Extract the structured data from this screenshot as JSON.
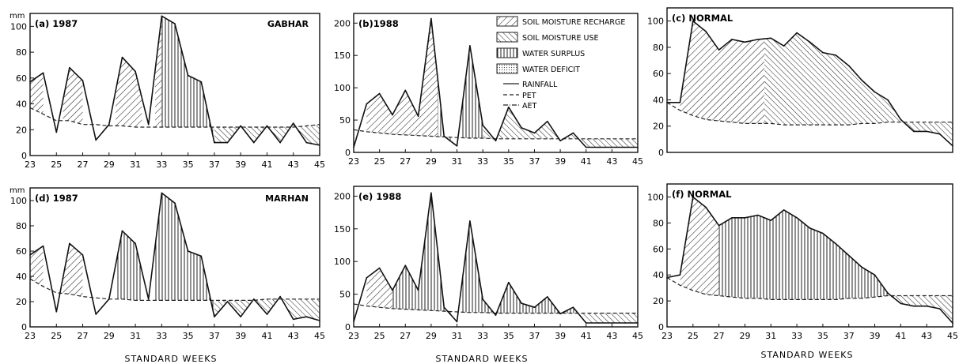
{
  "figure": {
    "xlabel": "STANDARD WEEKS",
    "colors": {
      "ink": "#1a1a1a",
      "paper": "#ffffff"
    },
    "legend": {
      "placement": "inside panel (b), top-right",
      "items": [
        {
          "label": "SOIL MOISTURE RECHARGE",
          "pattern": "diag-right"
        },
        {
          "label": "SOIL MOISTURE USE",
          "pattern": "diag-left"
        },
        {
          "label": "WATER SURPLUS",
          "pattern": "vertical"
        },
        {
          "label": "WATER DEFICIT",
          "pattern": "dots"
        },
        {
          "label": "RAINFALL",
          "line": "solid"
        },
        {
          "label": "PET",
          "line": "dashed"
        },
        {
          "label": "AET",
          "line": "dashdot"
        }
      ]
    }
  },
  "chart_data": [
    {
      "id": "a",
      "type": "area",
      "panel_label": "(a) 1987",
      "site_label": "GABHAR",
      "ylabel": "mm",
      "ylim": [
        0,
        110
      ],
      "yticks": [
        0,
        20,
        40,
        60,
        80,
        100
      ],
      "xlim": [
        23,
        45
      ],
      "xticks": [
        23,
        25,
        27,
        29,
        31,
        33,
        35,
        37,
        39,
        41,
        43,
        45
      ],
      "series": [
        {
          "name": "RAINFALL",
          "x": [
            23,
            24,
            25,
            26,
            27,
            28,
            29,
            30,
            31,
            32,
            33,
            34,
            35,
            36,
            37,
            38,
            39,
            40,
            41,
            42,
            43,
            44,
            45
          ],
          "values": [
            57,
            64,
            18,
            68,
            58,
            12,
            24,
            76,
            65,
            24,
            108,
            102,
            62,
            57,
            10,
            10,
            23,
            10,
            23,
            10,
            25,
            10,
            8
          ]
        },
        {
          "name": "PET",
          "x": [
            23,
            24,
            25,
            26,
            27,
            28,
            29,
            30,
            31,
            32,
            33,
            34,
            35,
            36,
            37,
            38,
            39,
            40,
            41,
            42,
            43,
            44,
            45
          ],
          "values": [
            37,
            32,
            27,
            27,
            24,
            24,
            23,
            23,
            22,
            22,
            22,
            22,
            22,
            22,
            22,
            22,
            22,
            22,
            22,
            22,
            22,
            23,
            24
          ]
        }
      ],
      "regions": [
        {
          "pattern": "diag-right",
          "x_range": [
            23,
            24
          ]
        },
        {
          "pattern": "diag-right",
          "x_range": [
            25.5,
            27
          ]
        },
        {
          "pattern": "diag-right",
          "x_range": [
            29.5,
            31.5
          ]
        },
        {
          "pattern": "diag-right",
          "x_range": [
            32.5,
            33
          ]
        },
        {
          "pattern": "vertical",
          "x_range": [
            33,
            36.9
          ]
        },
        {
          "pattern": "diag-left",
          "x_range": [
            37,
            45
          ]
        }
      ]
    },
    {
      "id": "b",
      "type": "area",
      "panel_label": "(b)1988",
      "site_label": "",
      "ylabel": "",
      "ylim": [
        0,
        215
      ],
      "yticks": [
        0,
        50,
        100,
        150,
        200
      ],
      "xlim": [
        23,
        45
      ],
      "xticks": [
        23,
        25,
        27,
        29,
        31,
        33,
        35,
        37,
        39,
        41,
        43,
        45
      ],
      "series": [
        {
          "name": "RAINFALL",
          "x": [
            23,
            24,
            25,
            26,
            27,
            28,
            29,
            30,
            31,
            32,
            33,
            34,
            35,
            36,
            37,
            38,
            39,
            40,
            41,
            42,
            43,
            44,
            45
          ],
          "values": [
            8,
            75,
            91,
            58,
            96,
            56,
            207,
            25,
            10,
            165,
            42,
            18,
            70,
            38,
            30,
            48,
            18,
            30,
            8,
            8,
            8,
            8,
            8
          ]
        },
        {
          "name": "PET",
          "x": [
            23,
            24,
            25,
            26,
            27,
            28,
            29,
            30,
            31,
            32,
            33,
            34,
            35,
            36,
            37,
            38,
            39,
            40,
            41,
            42,
            43,
            44,
            45
          ],
          "values": [
            35,
            32,
            30,
            28,
            27,
            26,
            25,
            24,
            23,
            22,
            22,
            21,
            21,
            21,
            21,
            21,
            21,
            21,
            21,
            21,
            21,
            21,
            21
          ]
        }
      ],
      "regions": [
        {
          "pattern": "diag-right",
          "x_range": [
            24,
            29.5
          ]
        },
        {
          "pattern": "vertical",
          "x_range": [
            29.5,
            30.5
          ]
        },
        {
          "pattern": "vertical",
          "x_range": [
            31.3,
            33
          ]
        },
        {
          "pattern": "diag-left",
          "x_range": [
            33,
            40.5
          ]
        },
        {
          "pattern": "diag-left",
          "x_range": [
            40.6,
            45
          ]
        }
      ]
    },
    {
      "id": "c",
      "type": "area",
      "panel_label": "(c) NORMAL",
      "site_label": "",
      "ylabel": "",
      "ylim": [
        0,
        110
      ],
      "yticks": [
        0,
        20,
        40,
        60,
        80,
        100
      ],
      "xlim": [
        23,
        45
      ],
      "xticks": [],
      "series": [
        {
          "name": "RAINFALL",
          "x": [
            23,
            24,
            25,
            26,
            27,
            28,
            29,
            30,
            31,
            32,
            33,
            34,
            35,
            36,
            37,
            38,
            39,
            40,
            41,
            42,
            43,
            44,
            45
          ],
          "values": [
            38,
            38,
            100,
            92,
            78,
            86,
            84,
            86,
            87,
            81,
            91,
            84,
            76,
            74,
            66,
            55,
            46,
            40,
            25,
            16,
            16,
            14,
            5
          ]
        },
        {
          "name": "PET",
          "x": [
            23,
            24,
            25,
            26,
            27,
            28,
            29,
            30,
            31,
            32,
            33,
            34,
            35,
            36,
            37,
            38,
            39,
            40,
            41,
            42,
            43,
            44,
            45
          ],
          "values": [
            38,
            32,
            28,
            25,
            24,
            23,
            22,
            22,
            22,
            21,
            21,
            21,
            21,
            21,
            21,
            22,
            22,
            23,
            23,
            23,
            23,
            23,
            23
          ]
        }
      ],
      "regions": [
        {
          "pattern": "diag-right",
          "x_range": [
            24,
            30.5
          ]
        },
        {
          "pattern": "diag-left",
          "x_range": [
            30.5,
            41
          ]
        },
        {
          "pattern": "diag-left",
          "x_range": [
            41,
            45
          ]
        }
      ]
    },
    {
      "id": "d",
      "type": "area",
      "panel_label": "(d) 1987",
      "site_label": "MARHAN",
      "ylabel": "mm",
      "ylim": [
        0,
        110
      ],
      "yticks": [
        0,
        20,
        40,
        60,
        80,
        100
      ],
      "xlim": [
        23,
        45
      ],
      "xticks": [
        23,
        25,
        27,
        29,
        31,
        33,
        35,
        37,
        39,
        41,
        43,
        45
      ],
      "series": [
        {
          "name": "RAINFALL",
          "x": [
            23,
            24,
            25,
            26,
            27,
            28,
            29,
            30,
            31,
            32,
            33,
            34,
            35,
            36,
            37,
            38,
            39,
            40,
            41,
            42,
            43,
            44,
            45
          ],
          "values": [
            57,
            64,
            12,
            66,
            57,
            10,
            22,
            76,
            66,
            22,
            106,
            98,
            60,
            56,
            8,
            20,
            8,
            22,
            10,
            24,
            6,
            8,
            5
          ]
        },
        {
          "name": "PET",
          "x": [
            23,
            24,
            25,
            26,
            27,
            28,
            29,
            30,
            31,
            32,
            33,
            34,
            35,
            36,
            37,
            38,
            39,
            40,
            41,
            42,
            43,
            44,
            45
          ],
          "values": [
            38,
            32,
            27,
            26,
            24,
            23,
            22,
            22,
            21,
            21,
            21,
            21,
            21,
            21,
            21,
            21,
            21,
            21,
            22,
            22,
            22,
            22,
            22
          ]
        }
      ],
      "regions": [
        {
          "pattern": "diag-right",
          "x_range": [
            23,
            24
          ]
        },
        {
          "pattern": "diag-right",
          "x_range": [
            25.5,
            27
          ]
        },
        {
          "pattern": "vertical",
          "x_range": [
            29.5,
            31.5
          ]
        },
        {
          "pattern": "vertical",
          "x_range": [
            32.5,
            37
          ]
        },
        {
          "pattern": "diag-left",
          "x_range": [
            37,
            45
          ]
        }
      ]
    },
    {
      "id": "e",
      "type": "area",
      "panel_label": "(e) 1988",
      "site_label": "",
      "ylabel": "",
      "ylim": [
        0,
        215
      ],
      "yticks": [
        0,
        50,
        100,
        150,
        200
      ],
      "xlim": [
        23,
        45
      ],
      "xticks": [
        23,
        25,
        27,
        29,
        31,
        33,
        35,
        37,
        39,
        41,
        43,
        45
      ],
      "series": [
        {
          "name": "RAINFALL",
          "x": [
            23,
            24,
            25,
            26,
            27,
            28,
            29,
            30,
            31,
            32,
            33,
            34,
            35,
            36,
            37,
            38,
            39,
            40,
            41,
            42,
            43,
            44,
            45
          ],
          "values": [
            8,
            75,
            90,
            56,
            94,
            56,
            205,
            30,
            8,
            162,
            42,
            18,
            68,
            36,
            30,
            46,
            20,
            30,
            6,
            6,
            6,
            6,
            6
          ]
        },
        {
          "name": "PET",
          "x": [
            23,
            24,
            25,
            26,
            27,
            28,
            29,
            30,
            31,
            32,
            33,
            34,
            35,
            36,
            37,
            38,
            39,
            40,
            41,
            42,
            43,
            44,
            45
          ],
          "values": [
            35,
            32,
            30,
            28,
            27,
            26,
            25,
            24,
            23,
            22,
            22,
            21,
            21,
            21,
            21,
            21,
            21,
            21,
            21,
            21,
            21,
            21,
            21
          ]
        }
      ],
      "regions": [
        {
          "pattern": "diag-right",
          "x_range": [
            24,
            26
          ]
        },
        {
          "pattern": "vertical",
          "x_range": [
            26,
            30.5
          ]
        },
        {
          "pattern": "vertical",
          "x_range": [
            31.3,
            40.4
          ]
        },
        {
          "pattern": "diag-left",
          "x_range": [
            40.4,
            45
          ]
        }
      ]
    },
    {
      "id": "f",
      "type": "area",
      "panel_label": "(f) NORMAL",
      "site_label": "",
      "ylabel": "",
      "ylim": [
        0,
        110
      ],
      "yticks": [
        0,
        20,
        40,
        60,
        80,
        100
      ],
      "xlim": [
        23,
        45
      ],
      "xticks": [
        23,
        25,
        27,
        29,
        31,
        33,
        35,
        37,
        39,
        41,
        43,
        45
      ],
      "series": [
        {
          "name": "RAINFALL",
          "x": [
            23,
            24,
            25,
            26,
            27,
            28,
            29,
            30,
            31,
            32,
            33,
            34,
            35,
            36,
            37,
            38,
            39,
            40,
            41,
            42,
            43,
            44,
            45
          ],
          "values": [
            38,
            40,
            100,
            92,
            78,
            84,
            84,
            86,
            82,
            90,
            84,
            76,
            72,
            64,
            55,
            46,
            40,
            26,
            18,
            16,
            16,
            14,
            3
          ]
        },
        {
          "name": "PET",
          "x": [
            23,
            24,
            25,
            26,
            27,
            28,
            29,
            30,
            31,
            32,
            33,
            34,
            35,
            36,
            37,
            38,
            39,
            40,
            41,
            42,
            43,
            44,
            45
          ],
          "values": [
            38,
            32,
            28,
            25,
            24,
            23,
            22,
            22,
            21,
            21,
            21,
            21,
            21,
            21,
            22,
            22,
            23,
            24,
            24,
            24,
            24,
            24,
            24
          ]
        }
      ],
      "regions": [
        {
          "pattern": "diag-right",
          "x_range": [
            24,
            27
          ]
        },
        {
          "pattern": "vertical",
          "x_range": [
            27,
            40.6
          ]
        },
        {
          "pattern": "diag-left",
          "x_range": [
            40.6,
            45
          ]
        }
      ]
    }
  ]
}
